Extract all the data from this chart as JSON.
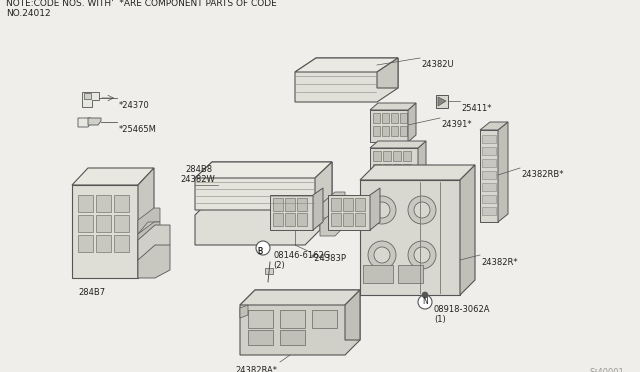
{
  "background_color": "#f0eeea",
  "line_color": "#555555",
  "text_color": "#222222",
  "note_line1": "NOTE:CODE NOS. WITH’  *ARE COMPONENT PARTS OF CODE",
  "note_line2": "NO.24012",
  "watermark": "S²40001",
  "title_fontsize": 6.5,
  "label_fontsize": 6.0,
  "fig_width": 6.4,
  "fig_height": 3.72,
  "dpi": 100
}
